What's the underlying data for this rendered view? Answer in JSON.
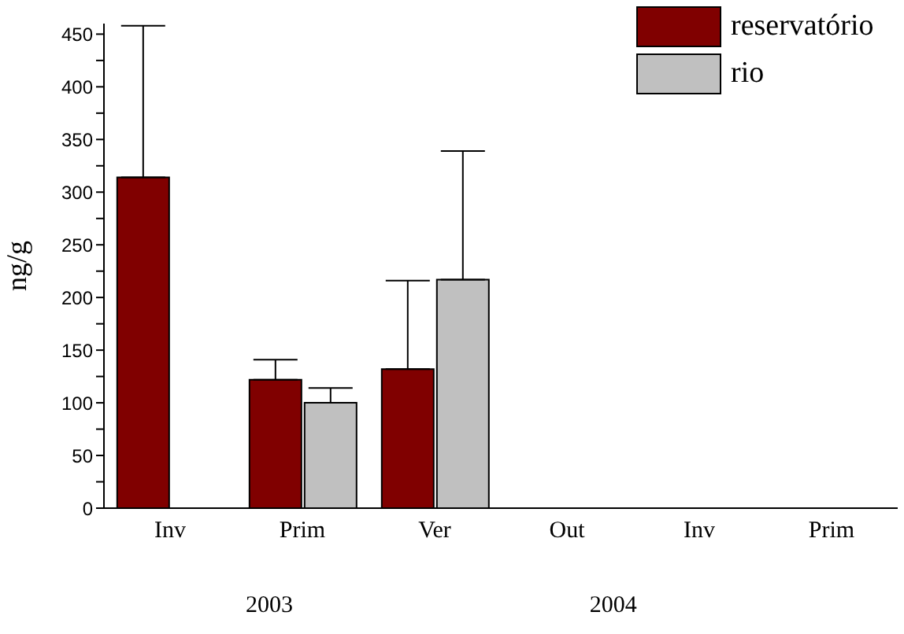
{
  "chart_data": {
    "type": "bar",
    "ylabel": "ng/g",
    "categories": [
      "Inv",
      "Prim",
      "Ver",
      "Out",
      "Inv",
      "Prim"
    ],
    "series": [
      {
        "name": "reservatório",
        "color": "#800000",
        "values": [
          314,
          122,
          132,
          null,
          null,
          null
        ],
        "errors": [
          [
            314,
            458
          ],
          [
            122,
            141
          ],
          [
            132,
            216
          ],
          null,
          null,
          null
        ]
      },
      {
        "name": "rio",
        "color": "#c0c0c0",
        "values": [
          null,
          100,
          217,
          null,
          null,
          null
        ],
        "errors": [
          null,
          [
            100,
            114
          ],
          [
            217,
            339
          ],
          null,
          null,
          null
        ]
      }
    ],
    "annotations": [
      "2003",
      "2004"
    ],
    "ylim": [
      0,
      460
    ],
    "yticks": [
      0,
      {
        "value": 25,
        "label": null
      },
      50,
      {
        "value": 75,
        "label": null
      },
      100,
      {
        "value": 125,
        "label": null
      },
      150,
      {
        "value": 175,
        "label": null
      },
      200,
      {
        "value": 225,
        "label": null
      },
      250,
      {
        "value": 275,
        "label": null
      },
      300,
      {
        "value": 325,
        "label": null
      },
      350,
      {
        "value": 375,
        "label": null
      },
      400,
      {
        "value": 425,
        "label": null
      },
      450
    ],
    "legend": "top right",
    "grid": false
  }
}
